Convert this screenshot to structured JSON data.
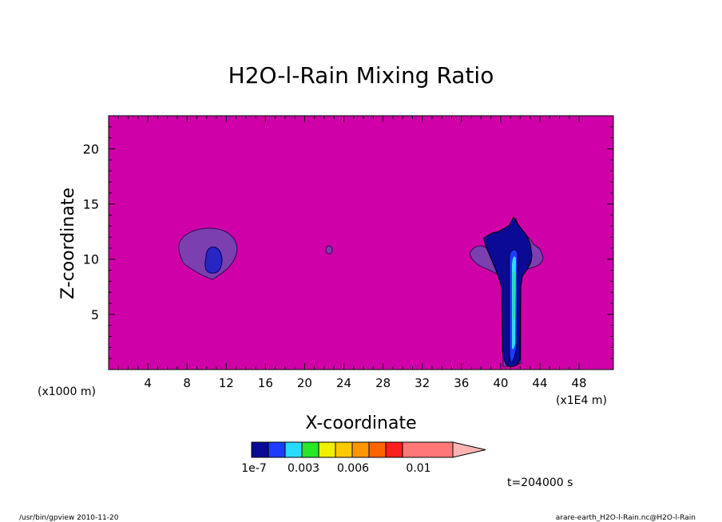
{
  "chart_data": {
    "type": "heatmap",
    "title": "H2O-l-Rain Mixing Ratio",
    "xlabel": "X-coordinate",
    "ylabel": "Z-coordinate",
    "x_unit_note": "(x1E4 m)",
    "z_unit_note": "(x1000 m)",
    "xlim": [
      0,
      51.5
    ],
    "ylim": [
      0,
      23
    ],
    "x_ticks": [
      4,
      8,
      12,
      16,
      20,
      24,
      28,
      32,
      36,
      40,
      44,
      48
    ],
    "y_ticks": [
      5,
      10,
      15,
      20
    ],
    "background_fill": "#d000a8",
    "colorbar": {
      "colors": [
        "#0a0a96",
        "#1e3cff",
        "#28dcff",
        "#28e628",
        "#f0f000",
        "#ffc800",
        "#ff9600",
        "#ff6400",
        "#ff1e1e",
        "#ff7878",
        "#ffb4b4"
      ],
      "tick_labels": [
        "1e-7",
        "0.003",
        "0.006",
        "0.01"
      ]
    },
    "features": [
      {
        "name": "cloud near x=10, z=11",
        "level_colors": [
          "#7b3fb0",
          "#2626c4"
        ]
      },
      {
        "name": "small cell near x=22.5, z=10.8",
        "level_colors": [
          "#7b3fb0"
        ]
      },
      {
        "name": "convective column near x=41",
        "level_colors": [
          "#7b3fb0",
          "#0a0a96",
          "#1e3cff",
          "#28dcff",
          "#28e628"
        ]
      }
    ],
    "time_label": "t=204000 s"
  },
  "footer": {
    "left": "/usr/bin/gpview  2010-11-20",
    "right": "arare-earth_H2O-l-Rain.nc@H2O-l-Rain"
  }
}
